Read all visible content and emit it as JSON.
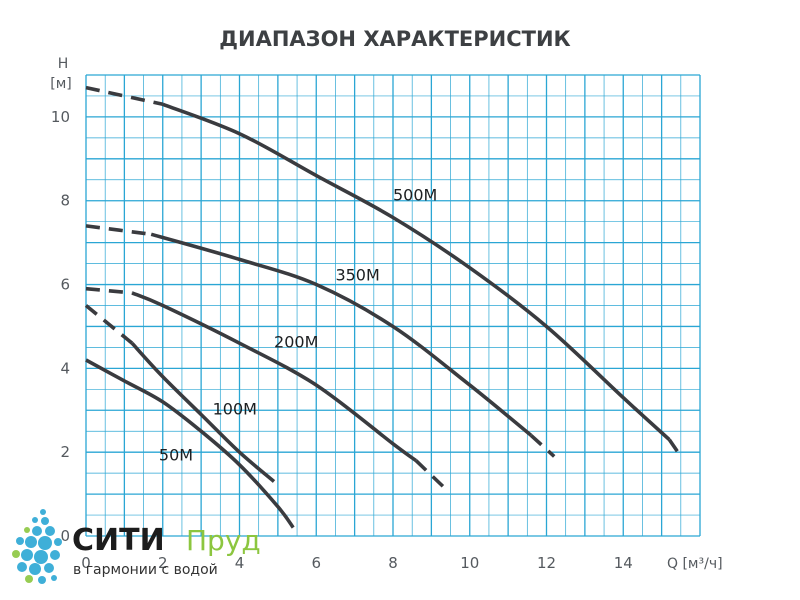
{
  "chart_data": {
    "type": "line",
    "title": "ДИАПАЗОН ХАРАКТЕРИСТИК",
    "xlabel": "Q [м³/ч]",
    "ylabel_top": "H",
    "ylabel_unit": "[м]",
    "xlim": [
      0,
      16
    ],
    "ylim": [
      0,
      11
    ],
    "x_ticks": [
      "0",
      "2",
      "4",
      "6",
      "8",
      "10",
      "12",
      "14"
    ],
    "y_ticks": [
      "0",
      "2",
      "4",
      "6",
      "8",
      "10"
    ],
    "grid": true,
    "series": [
      {
        "name": "500M",
        "dash_until": 2,
        "dash_after": 15.2,
        "x": [
          0,
          2,
          4,
          6,
          8,
          10,
          12,
          14,
          15.2,
          15.5
        ],
        "y": [
          10.7,
          10.3,
          9.6,
          8.6,
          7.6,
          6.4,
          5.0,
          3.3,
          2.3,
          1.9
        ]
      },
      {
        "name": "350M",
        "dash_until": 1.7,
        "dash_after": 11.6,
        "x": [
          0,
          1.7,
          4,
          6,
          8,
          10,
          11.6,
          12.2
        ],
        "y": [
          7.4,
          7.2,
          6.6,
          6.0,
          5.0,
          3.6,
          2.4,
          1.9
        ]
      },
      {
        "name": "200M",
        "dash_until": 1.2,
        "dash_after": 8.6,
        "x": [
          0,
          1.2,
          2,
          4,
          6,
          8,
          8.6,
          9.4
        ],
        "y": [
          5.9,
          5.8,
          5.5,
          4.6,
          3.6,
          2.2,
          1.8,
          1.1
        ]
      },
      {
        "name": "100M",
        "dash_until": 1.2,
        "dash_after": null,
        "x": [
          0,
          1.2,
          2,
          3,
          4,
          4.9
        ],
        "y": [
          5.5,
          4.6,
          3.8,
          2.9,
          2.0,
          1.3
        ]
      },
      {
        "name": "50M",
        "dash_until": null,
        "dash_after": null,
        "x": [
          0,
          1,
          2,
          3,
          4,
          5,
          5.4
        ],
        "y": [
          4.2,
          3.7,
          3.2,
          2.5,
          1.7,
          0.7,
          0.2
        ]
      }
    ],
    "annotations": [
      {
        "text": "500M",
        "x": 8.0,
        "y": 8.0
      },
      {
        "text": "350M",
        "x": 6.5,
        "y": 6.1
      },
      {
        "text": "200M",
        "x": 4.9,
        "y": 4.5
      },
      {
        "text": "100M",
        "x": 3.3,
        "y": 2.9
      },
      {
        "text": "50M",
        "x": 1.9,
        "y": 1.8
      }
    ]
  },
  "logo": {
    "name_part1": "СИТИ",
    "name_part2": "Пруд",
    "tagline": "в гармонии с водой"
  },
  "colors": {
    "grid": "#2aa6d4",
    "line": "#3a3b3f",
    "logo_drop": "#2aa6d4",
    "logo_accent": "#8cc63f"
  }
}
